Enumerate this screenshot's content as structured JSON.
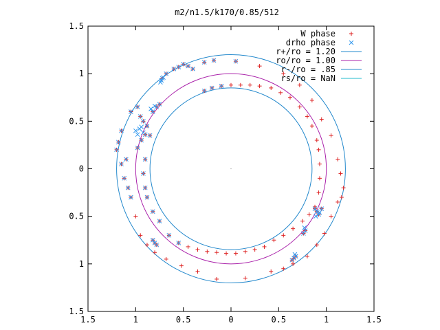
{
  "chart_data": {
    "type": "scatter",
    "title": "m2/n1.5/k170/0.85/512",
    "xlim": [
      -1.5,
      1.5
    ],
    "ylim": [
      -1.5,
      1.5
    ],
    "aspect": "equal",
    "grid": false,
    "legend_position": "top-right",
    "x_ticks": [
      {
        "value": -1.5,
        "label": "1.5"
      },
      {
        "value": -1.0,
        "label": "1"
      },
      {
        "value": -0.5,
        "label": "0.5"
      },
      {
        "value": 0.0,
        "label": "0"
      },
      {
        "value": 0.5,
        "label": "0.5"
      },
      {
        "value": 1.0,
        "label": "1"
      },
      {
        "value": 1.5,
        "label": "1.5"
      }
    ],
    "y_ticks": [
      {
        "value": -1.5,
        "label": "1.5"
      },
      {
        "value": -1.0,
        "label": "1"
      },
      {
        "value": -0.5,
        "label": "0.5"
      },
      {
        "value": 0.0,
        "label": "0"
      },
      {
        "value": 0.5,
        "label": "0.5"
      },
      {
        "value": 1.0,
        "label": "1"
      },
      {
        "value": 1.5,
        "label": "1.5"
      }
    ],
    "circles": [
      {
        "name": "r+/ro = 1.20",
        "radius": 1.2,
        "color": "#2288cc"
      },
      {
        "name": "ro/ro = 1.00",
        "radius": 1.0,
        "color": "#aa22aa"
      },
      {
        "name": "r-/ro = .85",
        "radius": 0.85,
        "color": "#2288cc"
      },
      {
        "name": "rs/ro = NaN",
        "radius": null,
        "color": "#22bbcc"
      }
    ],
    "series": [
      {
        "name": "W phase",
        "marker": "plus",
        "color": "#dd2222",
        "points": [
          [
            -1.2,
            0.2
          ],
          [
            -1.18,
            0.28
          ],
          [
            -1.15,
            0.4
          ],
          [
            -1.05,
            0.6
          ],
          [
            -0.98,
            0.65
          ],
          [
            -0.95,
            0.55
          ],
          [
            -0.92,
            0.5
          ],
          [
            -0.88,
            0.45
          ],
          [
            -0.82,
            0.6
          ],
          [
            -0.78,
            0.65
          ],
          [
            -0.75,
            0.68
          ],
          [
            -0.72,
            0.95
          ],
          [
            -0.68,
            1.0
          ],
          [
            -0.6,
            1.05
          ],
          [
            -0.55,
            1.07
          ],
          [
            -0.5,
            1.1
          ],
          [
            -0.45,
            1.08
          ],
          [
            -0.4,
            1.05
          ],
          [
            -0.28,
            1.12
          ],
          [
            -0.18,
            1.14
          ],
          [
            0.05,
            1.13
          ],
          [
            0.3,
            1.08
          ],
          [
            0.55,
            1.0
          ],
          [
            0.72,
            0.88
          ],
          [
            0.85,
            0.72
          ],
          [
            0.95,
            0.52
          ],
          [
            1.05,
            0.35
          ],
          [
            1.12,
            0.1
          ],
          [
            1.15,
            -0.05
          ],
          [
            1.18,
            -0.2
          ],
          [
            1.16,
            -0.3
          ],
          [
            1.12,
            -0.35
          ],
          [
            1.05,
            -0.5
          ],
          [
            0.98,
            -0.68
          ],
          [
            0.9,
            -0.8
          ],
          [
            0.8,
            -0.92
          ],
          [
            0.65,
            -1.0
          ],
          [
            0.55,
            -1.05
          ],
          [
            0.42,
            -1.08
          ],
          [
            0.15,
            -1.15
          ],
          [
            -0.15,
            -1.16
          ],
          [
            -0.35,
            -1.08
          ],
          [
            -0.52,
            -1.02
          ],
          [
            -0.68,
            -0.95
          ],
          [
            -0.8,
            -0.88
          ],
          [
            -0.88,
            -0.8
          ],
          [
            -0.95,
            -0.7
          ],
          [
            -1.0,
            -0.5
          ],
          [
            -1.05,
            -0.3
          ],
          [
            -1.08,
            -0.2
          ],
          [
            -1.12,
            -0.1
          ],
          [
            -1.15,
            0.05
          ],
          [
            -1.1,
            0.1
          ],
          [
            -0.98,
            0.22
          ],
          [
            -0.94,
            0.3
          ],
          [
            -0.9,
            0.36
          ],
          [
            -0.85,
            0.35
          ],
          [
            -0.9,
            0.1
          ],
          [
            -0.92,
            -0.05
          ],
          [
            -0.9,
            -0.2
          ],
          [
            -0.88,
            -0.3
          ],
          [
            -0.82,
            -0.45
          ],
          [
            -0.75,
            -0.55
          ],
          [
            -0.65,
            -0.7
          ],
          [
            -0.55,
            -0.78
          ],
          [
            -0.45,
            -0.82
          ],
          [
            -0.35,
            -0.85
          ],
          [
            -0.25,
            -0.87
          ],
          [
            -0.15,
            -0.88
          ],
          [
            -0.05,
            -0.89
          ],
          [
            0.05,
            -0.89
          ],
          [
            0.15,
            -0.87
          ],
          [
            0.25,
            -0.85
          ],
          [
            0.35,
            -0.82
          ],
          [
            0.45,
            -0.75
          ],
          [
            0.55,
            -0.7
          ],
          [
            0.65,
            -0.63
          ],
          [
            0.75,
            -0.55
          ],
          [
            0.82,
            -0.48
          ],
          [
            0.88,
            -0.4
          ],
          [
            0.92,
            -0.25
          ],
          [
            0.93,
            -0.1
          ],
          [
            0.93,
            0.05
          ],
          [
            0.92,
            0.2
          ],
          [
            0.9,
            0.3
          ],
          [
            0.85,
            0.45
          ],
          [
            0.8,
            0.55
          ],
          [
            0.72,
            0.65
          ],
          [
            0.62,
            0.75
          ],
          [
            0.52,
            0.8
          ],
          [
            0.42,
            0.85
          ],
          [
            0.3,
            0.87
          ],
          [
            0.2,
            0.88
          ],
          [
            0.1,
            0.88
          ],
          [
            0.0,
            0.88
          ],
          [
            -0.1,
            0.87
          ],
          [
            -0.2,
            0.85
          ],
          [
            -0.28,
            0.82
          ],
          [
            0.88,
            -0.42
          ],
          [
            0.9,
            -0.45
          ],
          [
            0.92,
            -0.48
          ],
          [
            0.95,
            -0.42
          ],
          [
            0.78,
            -0.65
          ],
          [
            0.76,
            -0.68
          ],
          [
            0.68,
            -0.92
          ],
          [
            0.66,
            -0.94
          ],
          [
            0.64,
            -0.96
          ],
          [
            -0.82,
            -0.75
          ],
          [
            -0.8,
            -0.78
          ],
          [
            -0.78,
            -0.8
          ]
        ]
      },
      {
        "name": "drho phase",
        "marker": "cross",
        "color": "#3399ee",
        "points": [
          [
            -1.2,
            0.2
          ],
          [
            -1.18,
            0.28
          ],
          [
            -1.15,
            0.4
          ],
          [
            -1.05,
            0.6
          ],
          [
            -0.98,
            0.65
          ],
          [
            -0.95,
            0.55
          ],
          [
            -0.92,
            0.5
          ],
          [
            -0.88,
            0.45
          ],
          [
            -0.82,
            0.6
          ],
          [
            -0.78,
            0.65
          ],
          [
            -0.75,
            0.68
          ],
          [
            -0.72,
            0.95
          ],
          [
            -0.68,
            1.0
          ],
          [
            -0.6,
            1.05
          ],
          [
            -0.55,
            1.07
          ],
          [
            -0.5,
            1.1
          ],
          [
            -0.45,
            1.08
          ],
          [
            -0.4,
            1.05
          ],
          [
            -0.28,
            1.12
          ],
          [
            -0.18,
            1.14
          ],
          [
            0.05,
            1.13
          ],
          [
            -1.0,
            0.4
          ],
          [
            -0.96,
            0.42
          ],
          [
            -0.94,
            0.44
          ],
          [
            -0.92,
            0.38
          ],
          [
            -0.98,
            0.36
          ],
          [
            -0.73,
            0.93
          ],
          [
            -0.71,
            0.96
          ],
          [
            -0.74,
            0.91
          ],
          [
            -0.84,
            0.63
          ],
          [
            -0.8,
            0.66
          ],
          [
            -1.05,
            -0.3
          ],
          [
            -1.08,
            -0.2
          ],
          [
            -1.12,
            -0.1
          ],
          [
            -1.15,
            0.05
          ],
          [
            -1.1,
            0.1
          ],
          [
            -0.98,
            0.22
          ],
          [
            -0.94,
            0.3
          ],
          [
            -0.9,
            0.36
          ],
          [
            -0.85,
            0.35
          ],
          [
            -0.9,
            0.1
          ],
          [
            -0.92,
            -0.05
          ],
          [
            -0.9,
            -0.2
          ],
          [
            -0.88,
            -0.3
          ],
          [
            -0.82,
            -0.45
          ],
          [
            -0.75,
            -0.55
          ],
          [
            -0.65,
            -0.7
          ],
          [
            -0.55,
            -0.78
          ],
          [
            -0.82,
            -0.75
          ],
          [
            -0.8,
            -0.78
          ],
          [
            -0.78,
            -0.8
          ],
          [
            0.88,
            -0.42
          ],
          [
            0.9,
            -0.45
          ],
          [
            0.92,
            -0.48
          ],
          [
            0.95,
            -0.42
          ],
          [
            0.93,
            -0.46
          ],
          [
            0.89,
            -0.5
          ],
          [
            0.78,
            -0.65
          ],
          [
            0.76,
            -0.68
          ],
          [
            0.77,
            -0.62
          ],
          [
            0.68,
            -0.92
          ],
          [
            0.66,
            -0.94
          ],
          [
            0.64,
            -0.96
          ],
          [
            0.67,
            -0.9
          ],
          [
            -0.28,
            0.82
          ],
          [
            -0.2,
            0.85
          ],
          [
            -0.1,
            0.87
          ]
        ]
      }
    ]
  }
}
